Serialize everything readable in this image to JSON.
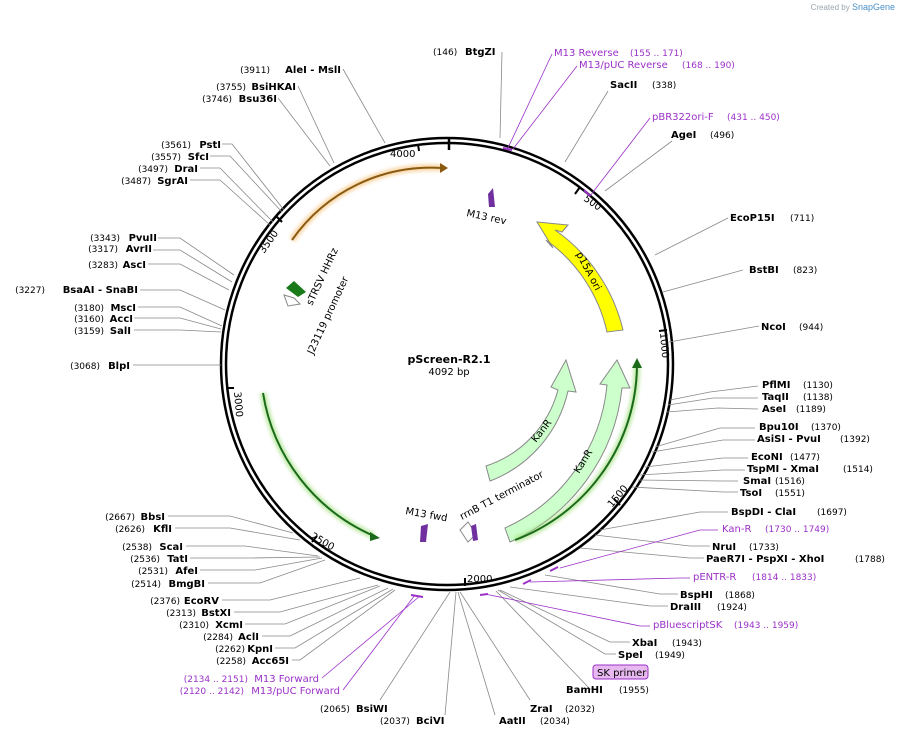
{
  "credit": {
    "prefix": "Created by",
    "brand": "SnapGene"
  },
  "plasmid": {
    "name": "pScreen-R2.1",
    "size_label": "4092 bp",
    "length": 4092
  },
  "colors": {
    "backbone": "#000000",
    "line": "#888888",
    "primer": "#9b30c8",
    "ori": "#ffff00",
    "kanr": "#ccffcc",
    "promoter": "#1a7a1a",
    "orange": "#f0a030"
  },
  "ticks": [
    {
      "pos": 500,
      "label": "500"
    },
    {
      "pos": 1000,
      "label": "1000"
    },
    {
      "pos": 1500,
      "label": "1500"
    },
    {
      "pos": 2000,
      "label": "2000"
    },
    {
      "pos": 2500,
      "label": "2500"
    },
    {
      "pos": 3000,
      "label": "3000"
    },
    {
      "pos": 3500,
      "label": "3500"
    },
    {
      "pos": 4000,
      "label": "4000"
    }
  ],
  "features": [
    {
      "name": "p15A ori",
      "type": "ori",
      "start": 570,
      "end": 1050,
      "dir": -1
    },
    {
      "name": "KanR",
      "type": "kanr",
      "start": 1260,
      "end": 1700,
      "dir": -1
    },
    {
      "name": "KanR",
      "type": "kanr",
      "start": 1265,
      "end": 1680,
      "dir": -1
    },
    {
      "name": "rrnB T1 terminator",
      "type": "terminator",
      "start": 1985,
      "end": 2030,
      "dir": 1
    },
    {
      "name": "M13 fwd",
      "type": "primer-bind",
      "start": 2050,
      "end": 2070,
      "dir": 1
    },
    {
      "name": "J23119 promoter",
      "type": "promoter",
      "start": 3410,
      "end": 3445,
      "dir": -1
    },
    {
      "name": "sTRSV HHRz",
      "type": "ribozyme",
      "start": 3390,
      "end": 3420,
      "dir": 1
    },
    {
      "name": "M13 rev",
      "type": "primer-bind",
      "start": 140,
      "end": 160,
      "dir": -1
    }
  ],
  "sites": [
    {
      "name": "BtgZI",
      "pos": "(146)",
      "side": "left"
    },
    {
      "name": "SacII",
      "pos": "(338)",
      "side": "right"
    },
    {
      "name": "AgeI",
      "pos": "(496)",
      "side": "right"
    },
    {
      "name": "EcoP15I",
      "pos": "(711)",
      "side": "right"
    },
    {
      "name": "BstBI",
      "pos": "(823)",
      "side": "right"
    },
    {
      "name": "NcoI",
      "pos": "(944)",
      "side": "right"
    },
    {
      "name": "PflMI",
      "pos": "(1130)",
      "side": "right"
    },
    {
      "name": "TaqII",
      "pos": "(1138)",
      "side": "right"
    },
    {
      "name": "AseI",
      "pos": "(1189)",
      "side": "right"
    },
    {
      "name": "Bpu10I",
      "pos": "(1370)",
      "side": "right"
    },
    {
      "name": "AsiSI - PvuI",
      "pos": "(1392)",
      "side": "right"
    },
    {
      "name": "EcoNI",
      "pos": "(1477)",
      "side": "right"
    },
    {
      "name": "TspMI - XmaI",
      "pos": "(1514)",
      "side": "right"
    },
    {
      "name": "SmaI",
      "pos": "(1516)",
      "side": "right"
    },
    {
      "name": "TsoI",
      "pos": "(1551)",
      "side": "right"
    },
    {
      "name": "BspDI - ClaI",
      "pos": "(1697)",
      "side": "right"
    },
    {
      "name": "NruI",
      "pos": "(1733)",
      "side": "right"
    },
    {
      "name": "PaeR7I - PspXI - XhoI",
      "pos": "(1788)",
      "side": "right"
    },
    {
      "name": "BspHI",
      "pos": "(1868)",
      "side": "right"
    },
    {
      "name": "DraIII",
      "pos": "(1924)",
      "side": "right"
    },
    {
      "name": "XbaI",
      "pos": "(1943)",
      "side": "right"
    },
    {
      "name": "SpeI",
      "pos": "(1949)",
      "side": "right"
    },
    {
      "name": "BamHI",
      "pos": "(1955)",
      "side": "right"
    },
    {
      "name": "ZraI",
      "pos": "(2032)",
      "side": "right"
    },
    {
      "name": "AatII",
      "pos": "(2034)",
      "side": "right"
    },
    {
      "name": "BciVI",
      "pos": "(2037)",
      "side": "left"
    },
    {
      "name": "BsiWI",
      "pos": "(2065)",
      "side": "left"
    },
    {
      "name": "Acc65I",
      "pos": "(2258)",
      "side": "left"
    },
    {
      "name": "KpnI",
      "pos": "(2262)",
      "side": "left"
    },
    {
      "name": "AclI",
      "pos": "(2284)",
      "side": "left"
    },
    {
      "name": "XcmI",
      "pos": "(2310)",
      "side": "left"
    },
    {
      "name": "BstXI",
      "pos": "(2313)",
      "side": "left"
    },
    {
      "name": "EcoRV",
      "pos": "(2376)",
      "side": "left"
    },
    {
      "name": "BmgBI",
      "pos": "(2514)",
      "side": "left"
    },
    {
      "name": "AfeI",
      "pos": "(2531)",
      "side": "left"
    },
    {
      "name": "TatI",
      "pos": "(2536)",
      "side": "left"
    },
    {
      "name": "ScaI",
      "pos": "(2538)",
      "side": "left"
    },
    {
      "name": "KflI",
      "pos": "(2626)",
      "side": "left"
    },
    {
      "name": "BbsI",
      "pos": "(2667)",
      "side": "left"
    },
    {
      "name": "BlpI",
      "pos": "(3068)",
      "side": "left"
    },
    {
      "name": "SalI",
      "pos": "(3159)",
      "side": "left"
    },
    {
      "name": "AccI",
      "pos": "(3160)",
      "side": "left"
    },
    {
      "name": "MscI",
      "pos": "(3180)",
      "side": "left"
    },
    {
      "name": "BsaAI - SnaBI",
      "pos": "(3227)",
      "side": "left"
    },
    {
      "name": "AscI",
      "pos": "(3283)",
      "side": "left"
    },
    {
      "name": "AvrII",
      "pos": "(3317)",
      "side": "left"
    },
    {
      "name": "PvuII",
      "pos": "(3343)",
      "side": "left"
    },
    {
      "name": "SgrAI",
      "pos": "(3487)",
      "side": "left"
    },
    {
      "name": "DraI",
      "pos": "(3497)",
      "side": "left"
    },
    {
      "name": "SfcI",
      "pos": "(3557)",
      "side": "left"
    },
    {
      "name": "PstI",
      "pos": "(3561)",
      "side": "left"
    },
    {
      "name": "Bsu36I",
      "pos": "(3746)",
      "side": "left"
    },
    {
      "name": "BsiHKAI",
      "pos": "(3755)",
      "side": "left"
    },
    {
      "name": "AleI - MslI",
      "pos": "(3911)",
      "side": "left"
    }
  ],
  "primers": [
    {
      "name": "M13 Reverse",
      "range": "(155 .. 171)"
    },
    {
      "name": "M13/pUC Reverse",
      "range": "(168 .. 190)"
    },
    {
      "name": "pBR322ori-F",
      "range": "(431 .. 450)"
    },
    {
      "name": "Kan-R",
      "range": "(1730 .. 1749)"
    },
    {
      "name": "pENTR-R",
      "range": "(1814 .. 1833)"
    },
    {
      "name": "pBluescriptSK",
      "range": "(1943 .. 1959)"
    },
    {
      "name": "SK primer",
      "range": ""
    },
    {
      "name": "M13 Forward",
      "range": "(2134 .. 2151)"
    },
    {
      "name": "M13/pUC Forward",
      "range": "(2120 .. 2142)"
    }
  ]
}
